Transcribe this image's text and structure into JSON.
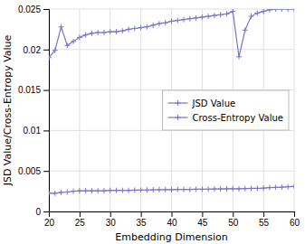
{
  "chart_data": {
    "type": "line",
    "x": [
      20,
      21,
      22,
      23,
      24,
      25,
      26,
      27,
      28,
      29,
      30,
      31,
      32,
      33,
      34,
      35,
      36,
      37,
      38,
      39,
      40,
      41,
      42,
      43,
      44,
      45,
      46,
      47,
      48,
      49,
      50,
      51,
      52,
      53,
      54,
      55,
      56,
      57,
      58,
      59,
      60
    ],
    "series": [
      {
        "name": "JSD Value",
        "color": "#7777cc",
        "marker": "+",
        "values": [
          0.00225,
          0.00225,
          0.00235,
          0.0024,
          0.0025,
          0.00255,
          0.00255,
          0.00255,
          0.00255,
          0.00255,
          0.0026,
          0.0026,
          0.0026,
          0.0026,
          0.00263,
          0.00265,
          0.00265,
          0.00268,
          0.00268,
          0.0027,
          0.0027,
          0.00272,
          0.00272,
          0.00272,
          0.00275,
          0.00275,
          0.00275,
          0.00278,
          0.00278,
          0.0028,
          0.0028,
          0.0028,
          0.00282,
          0.00285,
          0.00285,
          0.00288,
          0.00295,
          0.00298,
          0.003,
          0.00305,
          0.0031
        ]
      },
      {
        "name": "Cross-Entropy Value",
        "color": "#7777cc",
        "marker": "+",
        "values": [
          0.019,
          0.0199,
          0.0228,
          0.0205,
          0.021,
          0.0215,
          0.0218,
          0.022,
          0.0221,
          0.0221,
          0.0222,
          0.0222,
          0.0223,
          0.0225,
          0.0226,
          0.0227,
          0.0228,
          0.023,
          0.0232,
          0.0233,
          0.0235,
          0.0236,
          0.0237,
          0.0238,
          0.0239,
          0.024,
          0.0241,
          0.0242,
          0.0243,
          0.0244,
          0.0247,
          0.0191,
          0.0224,
          0.0241,
          0.0245,
          0.0247,
          0.0249,
          0.025,
          0.025,
          0.025,
          0.025
        ]
      }
    ],
    "xlabel": "Embedding Dimension",
    "ylabel": "JSD Value/Cross-Entropy Value",
    "xlim": [
      20,
      60
    ],
    "ylim": [
      0,
      0.025
    ],
    "xticks": [
      20,
      25,
      30,
      35,
      40,
      45,
      50,
      55,
      60
    ],
    "yticks": [
      0,
      0.005,
      0.01,
      0.015,
      0.02,
      0.025
    ],
    "grid": true,
    "legend": "right"
  }
}
